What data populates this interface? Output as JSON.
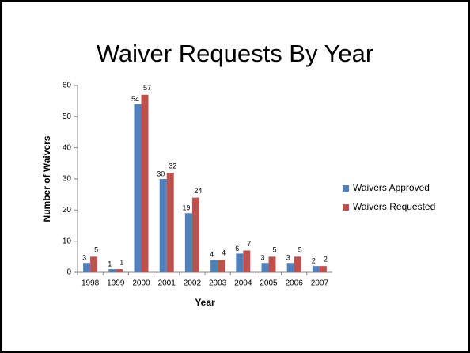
{
  "chart_data": {
    "type": "bar",
    "title": "Waiver Requests By Year",
    "x_label": "Year",
    "y_label": "Number of Waivers",
    "categories": [
      "1998",
      "1999",
      "2000",
      "2001",
      "2002",
      "2003",
      "2004",
      "2005",
      "2006",
      "2007"
    ],
    "series": [
      {
        "name": "Waivers Approved",
        "color": "#4f81bd",
        "values": [
          3,
          1,
          54,
          30,
          19,
          4,
          6,
          3,
          3,
          2
        ]
      },
      {
        "name": "Waivers Requested",
        "color": "#c0504d",
        "values": [
          5,
          1,
          57,
          32,
          24,
          4,
          7,
          5,
          5,
          2
        ]
      }
    ],
    "ylim": [
      0,
      60
    ],
    "yticks": [
      0,
      10,
      20,
      30,
      40,
      50,
      60
    ],
    "grid": false,
    "legend": "right"
  }
}
